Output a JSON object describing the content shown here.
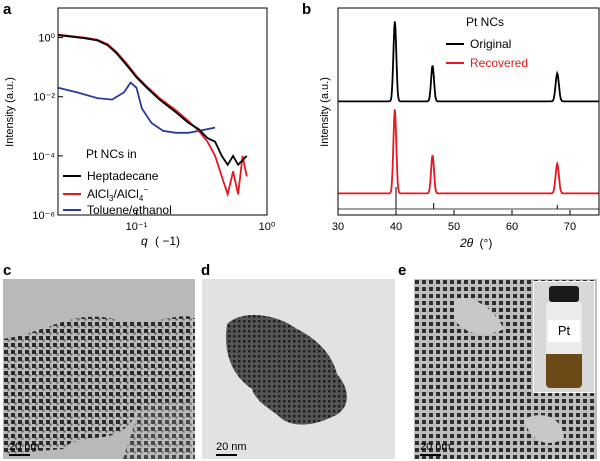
{
  "panels": {
    "a": {
      "letter": "a"
    },
    "b": {
      "letter": "b"
    },
    "c": {
      "letter": "c",
      "scale_bar": "20 nm"
    },
    "d": {
      "letter": "d",
      "scale_bar": "20 nm"
    },
    "e": {
      "letter": "e",
      "scale_bar": "20 nm",
      "vial_label": "Pt"
    }
  },
  "chart_data": [
    {
      "id": "a",
      "type": "line",
      "xscale": "log",
      "yscale": "log",
      "xlim": [
        0.025,
        1.0
      ],
      "ylim": [
        1e-06,
        10
      ],
      "xlabel_symbol": "q",
      "xlabel_unit": "( −1)",
      "ylabel": "Intensity (a.u.)",
      "x_ticks": [
        {
          "v": 0.1,
          "label": "10⁻¹"
        },
        {
          "v": 1,
          "label": "10⁰"
        }
      ],
      "y_ticks": [
        {
          "v": 1,
          "label": "10⁰"
        },
        {
          "v": 0.01,
          "label": "10⁻²"
        },
        {
          "v": 0.0001,
          "label": "10⁻⁴"
        },
        {
          "v": 1e-06,
          "label": "10⁻⁶"
        }
      ],
      "legend_title": "Pt NCs in",
      "legend_position": "bottom-left",
      "series": [
        {
          "name": "Heptadecane",
          "color": "#000000",
          "x": [
            0.025,
            0.03,
            0.04,
            0.05,
            0.06,
            0.07,
            0.08,
            0.09,
            0.1,
            0.12,
            0.15,
            0.2,
            0.25,
            0.3,
            0.35,
            0.4,
            0.45,
            0.5,
            0.55,
            0.6,
            0.7
          ],
          "y": [
            1.2,
            1.1,
            0.95,
            0.8,
            0.55,
            0.3,
            0.15,
            0.08,
            0.045,
            0.02,
            0.008,
            0.003,
            0.0013,
            0.0008,
            0.0004,
            0.0003,
            0.0001,
            5e-05,
            0.0001,
            5e-05,
            0.0001
          ]
        },
        {
          "name": "AlCl3/AlCl4−",
          "color": "#e8161e",
          "x": [
            0.025,
            0.03,
            0.04,
            0.05,
            0.06,
            0.07,
            0.08,
            0.09,
            0.1,
            0.12,
            0.15,
            0.2,
            0.25,
            0.3,
            0.35,
            0.4,
            0.45,
            0.5,
            0.55,
            0.6,
            0.65,
            0.7
          ],
          "y": [
            1.25,
            1.15,
            1.0,
            0.85,
            0.6,
            0.33,
            0.17,
            0.09,
            0.05,
            0.022,
            0.009,
            0.0035,
            0.0015,
            0.0007,
            0.0003,
            0.0001,
            2e-05,
            5e-06,
            3e-05,
            5e-06,
            0.0001,
            2e-05
          ]
        },
        {
          "name": "Toluene/ethanol",
          "color": "#2b3a9a",
          "x": [
            0.025,
            0.035,
            0.05,
            0.065,
            0.08,
            0.09,
            0.1,
            0.11,
            0.13,
            0.16,
            0.2,
            0.25,
            0.3,
            0.4
          ],
          "y": [
            0.02,
            0.014,
            0.009,
            0.008,
            0.014,
            0.03,
            0.02,
            0.004,
            0.0013,
            0.0007,
            0.0006,
            0.0006,
            0.0007,
            0.0009
          ]
        }
      ]
    },
    {
      "id": "b",
      "type": "line",
      "xlim": [
        30,
        75
      ],
      "xlabel_symbol": "2θ",
      "xlabel_unit": "(°)",
      "ylabel": "Intensity (a.u.)",
      "x_ticks": [
        30,
        40,
        50,
        60,
        70
      ],
      "legend_title": "Pt NCs",
      "legend_position": "top-right",
      "reference_peaks": [
        40.0,
        46.5,
        67.8
      ],
      "series": [
        {
          "name": "Original",
          "color": "#000000",
          "offset": 1.0,
          "peaks": [
            {
              "x": 39.8,
              "h": 1.0,
              "w": 0.7
            },
            {
              "x": 46.3,
              "h": 0.45,
              "w": 0.7
            },
            {
              "x": 67.8,
              "h": 0.35,
              "w": 0.8
            }
          ]
        },
        {
          "name": "Recovered",
          "color": "#e8161e",
          "offset": 0.0,
          "peaks": [
            {
              "x": 39.8,
              "h": 1.05,
              "w": 0.7
            },
            {
              "x": 46.3,
              "h": 0.48,
              "w": 0.7
            },
            {
              "x": 67.8,
              "h": 0.37,
              "w": 0.8
            }
          ]
        }
      ]
    }
  ]
}
